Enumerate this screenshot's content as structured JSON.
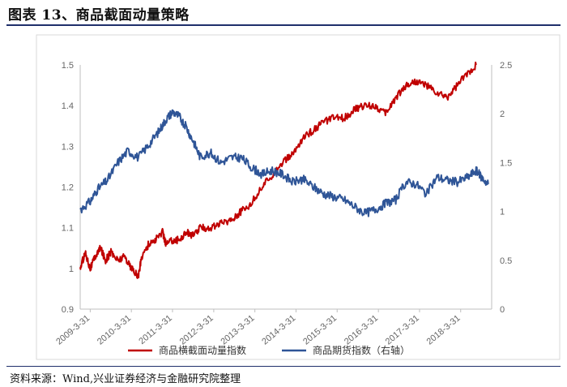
{
  "header": {
    "title": "图表 13、商品截面动量策略"
  },
  "footer": {
    "source": "资料来源：Wind,兴业证券经济与金融研究院整理"
  },
  "chart_data": {
    "type": "line",
    "title": "",
    "xlabel": "",
    "ylabel_left": "",
    "ylabel_right": "",
    "x_ticks": [
      "2009-3-31",
      "2010-3-31",
      "2011-3-31",
      "2012-3-31",
      "2013-3-31",
      "2014-3-31",
      "2015-3-31",
      "2016-3-31",
      "2017-3-31",
      "2018-3-31"
    ],
    "y_left": {
      "min": 0.9,
      "max": 1.5,
      "ticks": [
        "0.9",
        "1",
        "1.1",
        "1.2",
        "1.3",
        "1.4",
        "1.5"
      ]
    },
    "y_right": {
      "min": 0,
      "max": 2.5,
      "ticks": [
        "0",
        "0.5",
        "1",
        "1.5",
        "2",
        "2.5"
      ]
    },
    "legend_position": "bottom",
    "grid": false,
    "series": [
      {
        "name": "商品横截面动量指数",
        "axis": "left",
        "color": "#c00000",
        "points": [
          [
            "2009-01-01",
            1.0
          ],
          [
            "2009-02-15",
            1.04
          ],
          [
            "2009-03-31",
            1.0
          ],
          [
            "2009-05-15",
            1.03
          ],
          [
            "2009-07-01",
            1.05
          ],
          [
            "2009-08-15",
            1.02
          ],
          [
            "2009-10-01",
            1.04
          ],
          [
            "2009-12-01",
            1.02
          ],
          [
            "2010-02-01",
            1.03
          ],
          [
            "2010-04-01",
            1.0
          ],
          [
            "2010-06-01",
            0.98
          ],
          [
            "2010-07-01",
            1.03
          ],
          [
            "2010-09-01",
            1.06
          ],
          [
            "2010-11-01",
            1.07
          ],
          [
            "2011-01-01",
            1.09
          ],
          [
            "2011-02-01",
            1.06
          ],
          [
            "2011-04-01",
            1.07
          ],
          [
            "2011-06-01",
            1.07
          ],
          [
            "2011-08-01",
            1.09
          ],
          [
            "2011-10-01",
            1.08
          ],
          [
            "2011-12-01",
            1.1
          ],
          [
            "2012-03-01",
            1.1
          ],
          [
            "2012-06-01",
            1.11
          ],
          [
            "2012-09-01",
            1.12
          ],
          [
            "2012-12-01",
            1.14
          ],
          [
            "2013-03-01",
            1.16
          ],
          [
            "2013-06-01",
            1.2
          ],
          [
            "2013-09-01",
            1.23
          ],
          [
            "2013-12-01",
            1.26
          ],
          [
            "2014-03-01",
            1.28
          ],
          [
            "2014-06-01",
            1.32
          ],
          [
            "2014-09-01",
            1.34
          ],
          [
            "2014-12-01",
            1.36
          ],
          [
            "2015-03-01",
            1.37
          ],
          [
            "2015-06-01",
            1.37
          ],
          [
            "2015-09-01",
            1.39
          ],
          [
            "2015-12-01",
            1.4
          ],
          [
            "2016-03-01",
            1.4
          ],
          [
            "2016-06-01",
            1.38
          ],
          [
            "2016-09-01",
            1.42
          ],
          [
            "2016-12-01",
            1.45
          ],
          [
            "2017-03-01",
            1.46
          ],
          [
            "2017-06-01",
            1.45
          ],
          [
            "2017-09-01",
            1.43
          ],
          [
            "2017-12-01",
            1.42
          ],
          [
            "2018-03-01",
            1.45
          ],
          [
            "2018-06-01",
            1.48
          ],
          [
            "2018-08-15",
            1.5
          ]
        ]
      },
      {
        "name": "商品期货指数（右轴）",
        "axis": "right",
        "color": "#2f5597",
        "points": [
          [
            "2009-01-01",
            1.02
          ],
          [
            "2009-03-31",
            1.1
          ],
          [
            "2009-06-01",
            1.22
          ],
          [
            "2009-09-01",
            1.32
          ],
          [
            "2009-12-01",
            1.5
          ],
          [
            "2010-03-01",
            1.62
          ],
          [
            "2010-06-01",
            1.55
          ],
          [
            "2010-09-01",
            1.68
          ],
          [
            "2010-12-01",
            1.82
          ],
          [
            "2011-02-01",
            1.94
          ],
          [
            "2011-04-01",
            2.02
          ],
          [
            "2011-06-01",
            1.97
          ],
          [
            "2011-08-01",
            1.86
          ],
          [
            "2011-10-01",
            1.72
          ],
          [
            "2011-12-01",
            1.56
          ],
          [
            "2012-03-01",
            1.6
          ],
          [
            "2012-06-01",
            1.5
          ],
          [
            "2012-09-01",
            1.55
          ],
          [
            "2012-12-01",
            1.55
          ],
          [
            "2013-03-01",
            1.45
          ],
          [
            "2013-06-01",
            1.38
          ],
          [
            "2013-09-01",
            1.42
          ],
          [
            "2013-12-01",
            1.38
          ],
          [
            "2014-03-01",
            1.3
          ],
          [
            "2014-06-01",
            1.33
          ],
          [
            "2014-09-01",
            1.25
          ],
          [
            "2014-12-01",
            1.18
          ],
          [
            "2015-03-01",
            1.15
          ],
          [
            "2015-06-01",
            1.12
          ],
          [
            "2015-09-01",
            1.05
          ],
          [
            "2015-12-01",
            0.98
          ],
          [
            "2016-03-01",
            1.02
          ],
          [
            "2016-06-01",
            1.08
          ],
          [
            "2016-09-01",
            1.12
          ],
          [
            "2016-12-01",
            1.3
          ],
          [
            "2017-03-01",
            1.28
          ],
          [
            "2017-06-01",
            1.18
          ],
          [
            "2017-09-01",
            1.35
          ],
          [
            "2017-12-01",
            1.32
          ],
          [
            "2018-03-01",
            1.3
          ],
          [
            "2018-06-01",
            1.35
          ],
          [
            "2018-08-15",
            1.42
          ],
          [
            "2018-10-01",
            1.35
          ],
          [
            "2018-12-01",
            1.28
          ]
        ]
      }
    ]
  }
}
